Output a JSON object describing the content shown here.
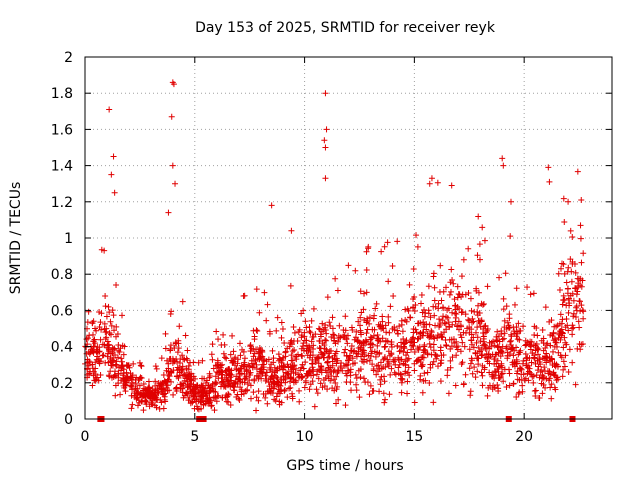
{
  "chart_data": {
    "type": "scatter",
    "title": "Day 153 of 2025, SRMTID for receiver reyk",
    "xlabel": "GPS time / hours",
    "ylabel": "SRMTID / TECUs",
    "xlim": [
      0,
      24
    ],
    "ylim": [
      0,
      2
    ],
    "x_ticks": [
      0,
      5,
      10,
      15,
      20
    ],
    "x_tick_labels": [
      "0",
      "5",
      "10",
      "15",
      "20"
    ],
    "y_ticks": [
      0,
      0.2,
      0.4,
      0.6,
      0.8,
      1,
      1.2,
      1.4,
      1.6,
      1.8,
      2
    ],
    "y_tick_labels": [
      "0",
      "0.2",
      "0.4",
      "0.6",
      "0.8",
      "1",
      "1.2",
      "1.4",
      "1.6",
      "1.8",
      "2"
    ],
    "grid": true,
    "marker": "+",
    "color": "#e00000",
    "envelope_x": [
      0,
      0.5,
      1,
      1.5,
      2,
      2.5,
      3,
      3.5,
      4,
      4.5,
      5,
      5.5,
      6,
      6.5,
      7,
      7.5,
      8,
      8.5,
      9,
      9.5,
      10,
      10.5,
      11,
      11.5,
      12,
      12.5,
      13,
      13.5,
      14,
      14.5,
      15,
      15.5,
      16,
      16.5,
      17,
      17.5,
      18,
      18.5,
      19,
      19.5,
      20,
      20.5,
      21,
      21.5,
      22,
      22.5
    ],
    "envelope_mean": [
      0.4,
      0.35,
      0.45,
      0.3,
      0.2,
      0.15,
      0.12,
      0.15,
      0.3,
      0.25,
      0.15,
      0.12,
      0.2,
      0.22,
      0.25,
      0.28,
      0.3,
      0.22,
      0.25,
      0.3,
      0.35,
      0.3,
      0.35,
      0.32,
      0.35,
      0.35,
      0.4,
      0.38,
      0.4,
      0.35,
      0.4,
      0.45,
      0.5,
      0.45,
      0.5,
      0.45,
      0.45,
      0.3,
      0.35,
      0.45,
      0.3,
      0.3,
      0.3,
      0.35,
      0.6,
      0.6
    ],
    "spikes": [
      {
        "x": 1.1,
        "y": 1.71
      },
      {
        "x": 1.3,
        "y": 1.45
      },
      {
        "x": 1.2,
        "y": 1.35
      },
      {
        "x": 1.35,
        "y": 1.25
      },
      {
        "x": 4.0,
        "y": 1.86
      },
      {
        "x": 4.05,
        "y": 1.85
      },
      {
        "x": 3.95,
        "y": 1.67
      },
      {
        "x": 4.0,
        "y": 1.4
      },
      {
        "x": 3.8,
        "y": 1.14
      },
      {
        "x": 4.1,
        "y": 1.3
      },
      {
        "x": 8.5,
        "y": 1.18
      },
      {
        "x": 9.4,
        "y": 1.04
      },
      {
        "x": 10.95,
        "y": 1.8
      },
      {
        "x": 11.0,
        "y": 1.6
      },
      {
        "x": 10.9,
        "y": 1.54
      },
      {
        "x": 10.95,
        "y": 1.5
      },
      {
        "x": 10.95,
        "y": 1.33
      },
      {
        "x": 15.8,
        "y": 1.33
      },
      {
        "x": 15.7,
        "y": 1.3
      },
      {
        "x": 16.7,
        "y": 1.29
      },
      {
        "x": 19.0,
        "y": 1.44
      },
      {
        "x": 19.05,
        "y": 1.4
      },
      {
        "x": 19.4,
        "y": 1.2
      },
      {
        "x": 21.1,
        "y": 1.39
      },
      {
        "x": 21.15,
        "y": 1.31
      },
      {
        "x": 22.6,
        "y": 1.21
      },
      {
        "x": 22.0,
        "y": 1.2
      }
    ],
    "zero_markers_x": [
      0.7,
      0.75,
      5.2,
      5.4,
      19.3,
      22.2
    ]
  }
}
